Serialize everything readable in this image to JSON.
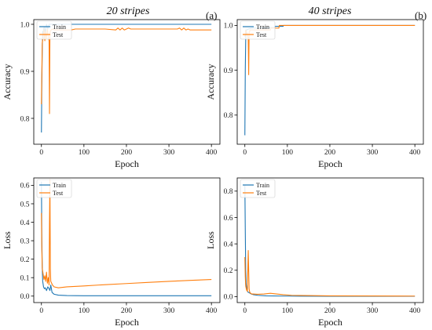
{
  "figure": {
    "col_titles": [
      "20 stripes",
      "40 stripes"
    ],
    "panel_letters": [
      "(a)",
      "(b)"
    ]
  },
  "chart_data": [
    {
      "id": "acc20",
      "type": "line",
      "title": "",
      "xlabel": "Epoch",
      "ylabel": "Accuracy",
      "xlim": [
        -18,
        420
      ],
      "ylim": [
        0.745,
        1.01
      ],
      "xticks": [
        0,
        100,
        200,
        300,
        400
      ],
      "yticks": [
        0.8,
        0.9,
        1.0
      ],
      "ytick_labels": [
        "0.8",
        "0.9",
        "1.0"
      ],
      "legend": "top-left",
      "series": [
        {
          "name": "Train",
          "color": "#1f77b4",
          "x": [
            0,
            1,
            2,
            3,
            4,
            5,
            7,
            9,
            12,
            15,
            18,
            22,
            30,
            50,
            100,
            200,
            300,
            400
          ],
          "y": [
            0.77,
            0.88,
            0.95,
            0.985,
            0.97,
            0.99,
            0.995,
            0.98,
            1.0,
            0.99,
            1.0,
            1.0,
            1.0,
            1.0,
            1.0,
            1.0,
            1.0,
            1.0
          ]
        },
        {
          "name": "Test",
          "color": "#ff7f0e",
          "x": [
            0,
            2,
            4,
            6,
            8,
            10,
            12,
            14,
            16,
            18,
            19,
            20,
            21,
            23,
            26,
            30,
            40,
            50,
            60,
            70,
            80,
            85,
            100,
            150,
            175,
            180,
            185,
            190,
            195,
            200,
            205,
            210,
            250,
            300,
            320,
            325,
            330,
            335,
            340,
            345,
            350,
            380,
            400
          ],
          "y": [
            0.83,
            0.96,
            0.975,
            0.99,
            0.965,
            0.985,
            0.97,
            0.99,
            0.975,
            0.965,
            0.81,
            0.98,
            0.985,
            0.988,
            0.99,
            0.988,
            0.988,
            0.988,
            0.988,
            0.988,
            0.99,
            0.99,
            0.99,
            0.99,
            0.988,
            0.992,
            0.988,
            0.992,
            0.988,
            0.99,
            0.992,
            0.99,
            0.99,
            0.99,
            0.99,
            0.992,
            0.988,
            0.992,
            0.988,
            0.99,
            0.988,
            0.988,
            0.988
          ]
        }
      ]
    },
    {
      "id": "acc40",
      "type": "line",
      "title": "",
      "xlabel": "Epoch",
      "ylabel": "Accuracy",
      "xlim": [
        -18,
        420
      ],
      "ylim": [
        0.735,
        1.013
      ],
      "xticks": [
        0,
        100,
        200,
        300,
        400
      ],
      "yticks": [
        0.8,
        0.9,
        1.0
      ],
      "ytick_labels": [
        "0.8",
        "0.9",
        "1.0"
      ],
      "legend": "top-left",
      "series": [
        {
          "name": "Train",
          "color": "#1f77b4",
          "x": [
            0,
            1,
            2,
            3,
            5,
            8,
            12,
            20,
            50,
            70,
            71,
            90,
            91,
            100,
            200,
            300,
            400
          ],
          "y": [
            0.755,
            0.9,
            0.97,
            0.99,
            0.99,
            0.992,
            0.993,
            0.994,
            0.995,
            0.995,
            0.998,
            0.998,
            1.0,
            1.0,
            1.0,
            1.0,
            1.0
          ]
        },
        {
          "name": "Test",
          "color": "#ff7f0e",
          "x": [
            0,
            2,
            4,
            6,
            8,
            9,
            10,
            11,
            12,
            14,
            16,
            20,
            40,
            60,
            61,
            80,
            81,
            100,
            200,
            300,
            400
          ],
          "y": [
            0.975,
            0.99,
            0.985,
            0.98,
            0.97,
            0.89,
            0.985,
            0.985,
            0.99,
            0.99,
            0.99,
            0.99,
            0.99,
            0.99,
            0.994,
            0.994,
            1.0,
            1.0,
            1.0,
            1.0,
            1.0
          ]
        }
      ]
    },
    {
      "id": "loss20",
      "type": "line",
      "title": "",
      "xlabel": "Epoch",
      "ylabel": "Loss",
      "xlim": [
        -18,
        420
      ],
      "ylim": [
        -0.035,
        0.64
      ],
      "xticks": [
        0,
        100,
        200,
        300,
        400
      ],
      "yticks": [
        0.0,
        0.1,
        0.2,
        0.3,
        0.4,
        0.5,
        0.6
      ],
      "ytick_labels": [
        "0.0",
        "0.1",
        "0.2",
        "0.3",
        "0.4",
        "0.5",
        "0.6"
      ],
      "legend": "top-left",
      "series": [
        {
          "name": "Train",
          "color": "#1f77b4",
          "x": [
            0,
            1,
            2,
            3,
            5,
            7,
            9,
            12,
            15,
            18,
            20,
            22,
            25,
            30,
            40,
            60,
            100,
            200,
            300,
            400
          ],
          "y": [
            0.62,
            0.3,
            0.15,
            0.08,
            0.05,
            0.04,
            0.045,
            0.03,
            0.05,
            0.04,
            0.03,
            0.06,
            0.02,
            0.01,
            0.005,
            0.003,
            0.002,
            0.002,
            0.002,
            0.002
          ]
        },
        {
          "name": "Test",
          "color": "#ff7f0e",
          "x": [
            0,
            1,
            2,
            4,
            6,
            8,
            10,
            12,
            14,
            16,
            18,
            19,
            20,
            21,
            22,
            24,
            26,
            30,
            40,
            60,
            100,
            150,
            200,
            250,
            300,
            350,
            400
          ],
          "y": [
            0.45,
            0.25,
            0.15,
            0.12,
            0.09,
            0.11,
            0.08,
            0.13,
            0.07,
            0.1,
            0.06,
            0.4,
            0.63,
            0.15,
            0.08,
            0.07,
            0.06,
            0.05,
            0.045,
            0.05,
            0.055,
            0.062,
            0.068,
            0.074,
            0.08,
            0.085,
            0.09
          ]
        }
      ]
    },
    {
      "id": "loss40",
      "type": "line",
      "title": "",
      "xlabel": "Epoch",
      "ylabel": "Loss",
      "xlim": [
        -18,
        420
      ],
      "ylim": [
        -0.045,
        0.9
      ],
      "xticks": [
        0,
        100,
        200,
        300,
        400
      ],
      "yticks": [
        0.0,
        0.2,
        0.4,
        0.6,
        0.8
      ],
      "ytick_labels": [
        "0.0",
        "0.2",
        "0.4",
        "0.6",
        "0.8"
      ],
      "legend": "top-left",
      "series": [
        {
          "name": "Train",
          "color": "#1f77b4",
          "x": [
            0,
            1,
            2,
            3,
            5,
            7,
            10,
            15,
            20,
            30,
            50,
            100,
            200,
            300,
            400
          ],
          "y": [
            0.85,
            0.5,
            0.2,
            0.1,
            0.05,
            0.035,
            0.03,
            0.02,
            0.015,
            0.01,
            0.006,
            0.004,
            0.003,
            0.003,
            0.003
          ]
        },
        {
          "name": "Test",
          "color": "#ff7f0e",
          "x": [
            0,
            1,
            2,
            4,
            6,
            7,
            8,
            9,
            10,
            11,
            12,
            14,
            16,
            20,
            30,
            45,
            60,
            75,
            90,
            110,
            150,
            200,
            300,
            400
          ],
          "y": [
            0.3,
            0.15,
            0.08,
            0.05,
            0.04,
            0.2,
            0.35,
            0.2,
            0.06,
            0.04,
            0.03,
            0.025,
            0.02,
            0.02,
            0.018,
            0.02,
            0.025,
            0.02,
            0.015,
            0.01,
            0.008,
            0.006,
            0.005,
            0.004
          ]
        }
      ]
    }
  ]
}
